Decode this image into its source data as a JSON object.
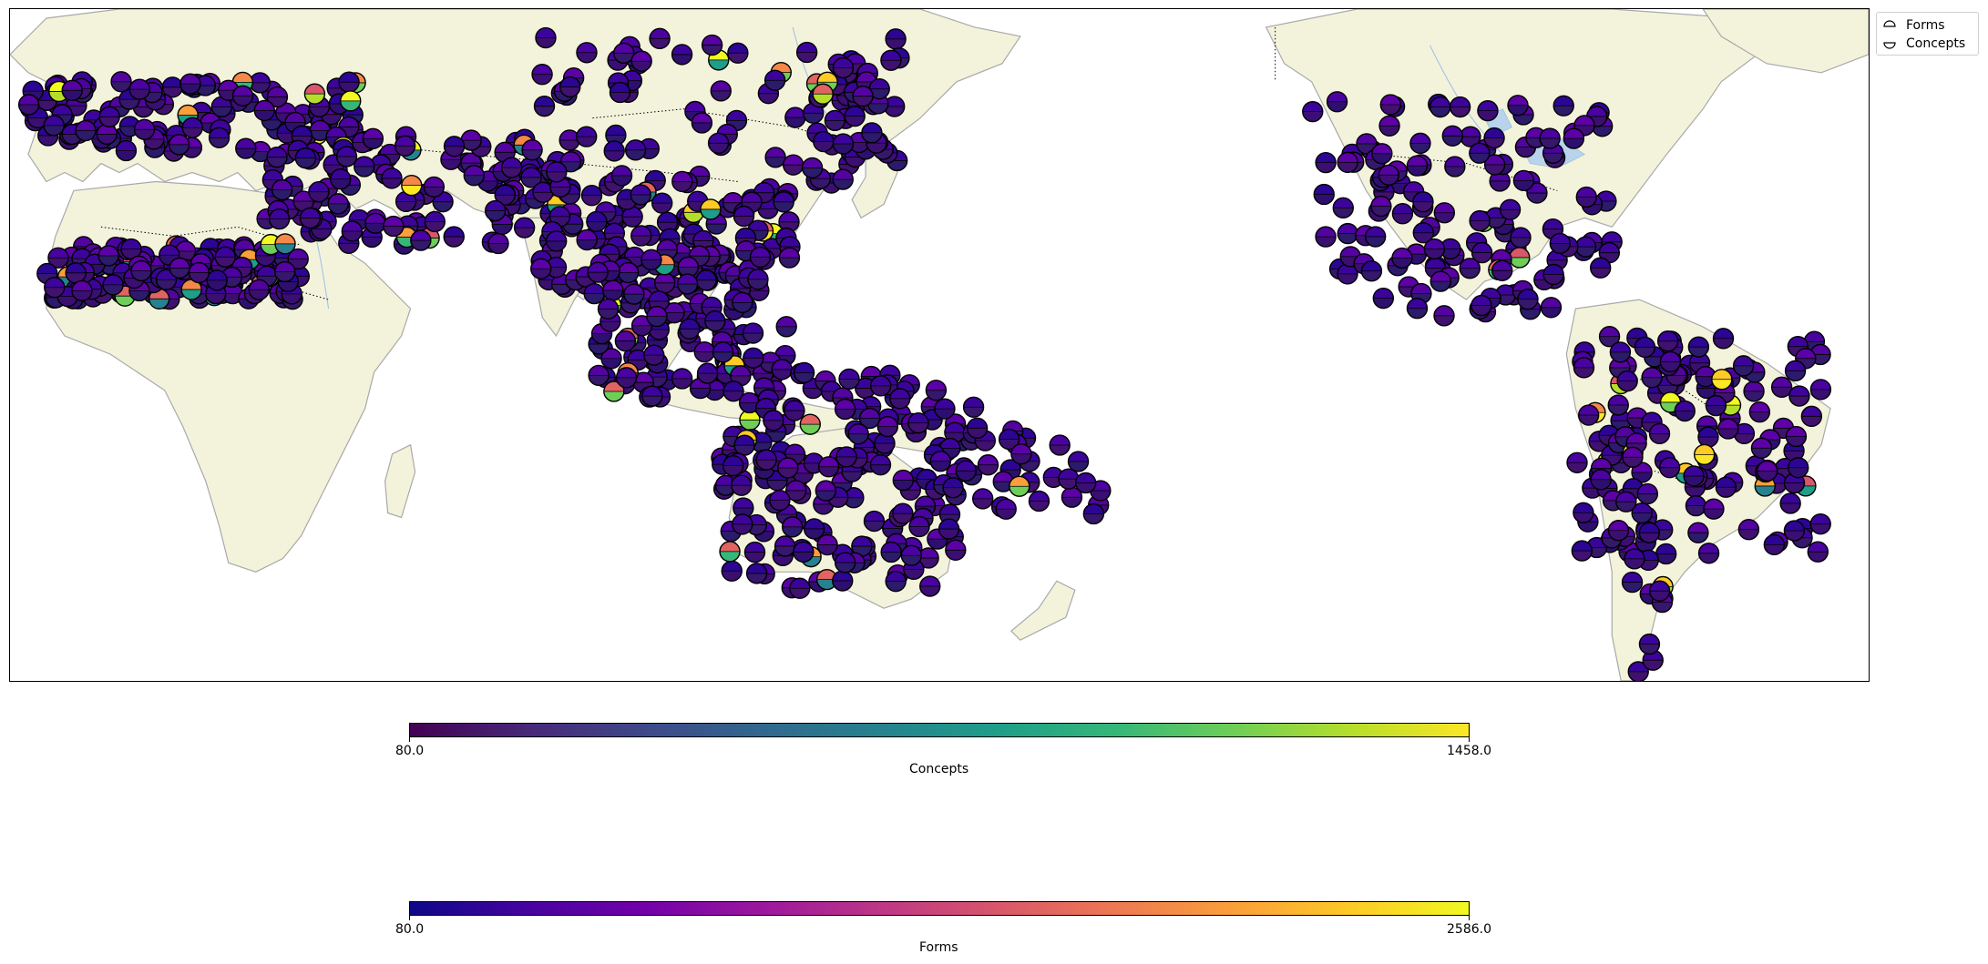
{
  "legend": {
    "items": [
      {
        "label": "Forms",
        "half": "top"
      },
      {
        "label": "Concepts",
        "half": "bottom"
      }
    ]
  },
  "colorbars": {
    "concepts": {
      "label": "Concepts",
      "min": "80.0",
      "max": "1458.0",
      "colormap": "viridis"
    },
    "forms": {
      "label": "Forms",
      "min": "80.0",
      "max": "2586.0",
      "colormap": "plasma"
    }
  },
  "colors": {
    "land": "#f3f3dc",
    "coast": "#a9a9a9",
    "water": "#ffffff",
    "lakes": "#b9d3ec"
  }
}
